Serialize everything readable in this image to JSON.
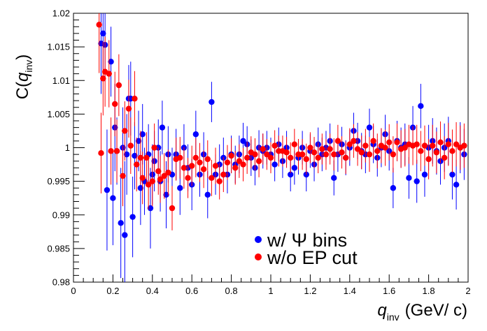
{
  "chart_data": {
    "type": "scatter",
    "xlabel": {
      "symbol": "q",
      "subscript": "inv",
      "units": "(GeV/ c)"
    },
    "ylabel": {
      "prefix": "C(",
      "symbol": "q",
      "subscript": "inv",
      "suffix": ")"
    },
    "xlim": [
      0,
      2
    ],
    "ylim": [
      0.98,
      1.02
    ],
    "x_ticks": [
      0,
      0.2,
      0.4,
      0.6,
      0.8,
      1,
      1.2,
      1.4,
      1.6,
      1.8,
      2
    ],
    "x_tick_labels": [
      "0",
      "0.2",
      "0.4",
      "0.6",
      "0.8",
      "1",
      "1.2",
      "1.4",
      "1.6",
      "1.8",
      "2"
    ],
    "y_ticks": [
      0.98,
      0.985,
      0.99,
      0.995,
      1,
      1.005,
      1.01,
      1.015,
      1.02
    ],
    "y_tick_labels": [
      "0.98",
      "0.985",
      "0.99",
      "0.995",
      "1",
      "1.005",
      "1.01",
      "1.015",
      "1.02"
    ],
    "grid": false,
    "legend": {
      "position": "bottom-center"
    },
    "series": [
      {
        "name": "w/ Ψ bins",
        "color": "#0000ff",
        "x": [
          0.14,
          0.15,
          0.16,
          0.17,
          0.19,
          0.2,
          0.21,
          0.22,
          0.24,
          0.25,
          0.26,
          0.27,
          0.28,
          0.29,
          0.3,
          0.31,
          0.33,
          0.34,
          0.35,
          0.36,
          0.38,
          0.39,
          0.4,
          0.41,
          0.43,
          0.44,
          0.45,
          0.47,
          0.48,
          0.5,
          0.52,
          0.54,
          0.56,
          0.58,
          0.6,
          0.62,
          0.64,
          0.66,
          0.68,
          0.7,
          0.72,
          0.74,
          0.76,
          0.78,
          0.8,
          0.82,
          0.84,
          0.86,
          0.88,
          0.9,
          0.92,
          0.94,
          0.96,
          0.98,
          1.0,
          1.02,
          1.04,
          1.06,
          1.08,
          1.1,
          1.12,
          1.14,
          1.16,
          1.18,
          1.2,
          1.22,
          1.24,
          1.26,
          1.28,
          1.3,
          1.32,
          1.34,
          1.36,
          1.38,
          1.4,
          1.42,
          1.44,
          1.46,
          1.48,
          1.5,
          1.52,
          1.54,
          1.56,
          1.58,
          1.6,
          1.62,
          1.64,
          1.66,
          1.68,
          1.7,
          1.72,
          1.74,
          1.76,
          1.78,
          1.8,
          1.82,
          1.84,
          1.86,
          1.88,
          1.9,
          1.92,
          1.94,
          1.96,
          1.98
        ],
        "y": [
          1.0155,
          1.017,
          1.0153,
          0.9937,
          1.0128,
          0.9925,
          1.003,
          0.9995,
          0.9888,
          1.0,
          0.987,
          0.999,
          1.0073,
          1.0073,
          0.9897,
          0.9988,
          1.001,
          0.994,
          1.002,
          0.995,
          0.999,
          0.991,
          0.996,
          0.998,
          1.0,
          0.995,
          1.003,
          0.993,
          0.999,
          0.996,
          0.999,
          0.994,
          1.0,
          0.997,
          0.9945,
          1.002,
          0.996,
          0.999,
          0.993,
          1.0068,
          0.996,
          0.9975,
          0.9985,
          0.996,
          0.999,
          0.9975,
          0.999,
          1.001,
          1.0005,
          0.9985,
          0.997,
          1.0,
          0.9995,
          1.0,
          0.999,
          0.9975,
          1.0005,
          0.998,
          1.0,
          0.996,
          0.997,
          0.9985,
          1.0,
          0.996,
          0.9995,
          0.9975,
          1.0005,
          0.999,
          1.0,
          1.001,
          0.9955,
          0.999,
          1.0005,
          0.9985,
          1.0,
          1.0025,
          1.001,
          0.9995,
          0.999,
          1.003,
          1.0005,
          0.9985,
          1.0,
          1.002,
          0.9995,
          0.994,
          1.001,
          1.0,
          1.0005,
          0.9955,
          1.003,
          0.995,
          1.0062,
          0.996,
          1.0,
          1.001,
          0.9995,
          0.998,
          1.0,
          1.001,
          0.996,
          0.9945,
          1.0,
          0.999
        ],
        "y_err": [
          0.0075,
          0.006,
          0.0055,
          0.009,
          0.0052,
          0.007,
          0.0065,
          0.005,
          0.0082,
          0.006,
          0.011,
          0.006,
          0.005,
          0.0055,
          0.006,
          0.005,
          0.0045,
          0.0055,
          0.0045,
          0.005,
          0.0045,
          0.006,
          0.0045,
          0.0045,
          0.0042,
          0.0045,
          0.004,
          0.005,
          0.0042,
          0.004,
          0.0038,
          0.004,
          0.0035,
          0.0035,
          0.0038,
          0.0035,
          0.0033,
          0.0033,
          0.0035,
          0.003,
          0.003,
          0.003,
          0.003,
          0.0028,
          0.0028,
          0.0028,
          0.0028,
          0.0027,
          0.0027,
          0.0027,
          0.0026,
          0.0026,
          0.0026,
          0.0025,
          0.0025,
          0.0025,
          0.0025,
          0.0025,
          0.0025,
          0.0025,
          0.0025,
          0.0025,
          0.0025,
          0.0025,
          0.0025,
          0.0025,
          0.0025,
          0.0025,
          0.0025,
          0.0026,
          0.0026,
          0.0026,
          0.0026,
          0.0026,
          0.0027,
          0.0027,
          0.0027,
          0.0027,
          0.0028,
          0.0028,
          0.0028,
          0.0028,
          0.0029,
          0.0029,
          0.0029,
          0.003,
          0.003,
          0.003,
          0.0031,
          0.0031,
          0.0032,
          0.0032,
          0.0033,
          0.0033,
          0.0034,
          0.0034,
          0.0035,
          0.0035,
          0.0036,
          0.0036,
          0.0037,
          0.0037,
          0.0038,
          0.0038
        ]
      },
      {
        "name": "w/o EP cut",
        "color": "#ff0000",
        "x": [
          0.13,
          0.14,
          0.15,
          0.16,
          0.18,
          0.19,
          0.21,
          0.22,
          0.23,
          0.25,
          0.26,
          0.28,
          0.29,
          0.31,
          0.32,
          0.34,
          0.35,
          0.37,
          0.38,
          0.4,
          0.41,
          0.43,
          0.44,
          0.46,
          0.48,
          0.5,
          0.52,
          0.54,
          0.56,
          0.58,
          0.6,
          0.62,
          0.64,
          0.66,
          0.68,
          0.7,
          0.72,
          0.74,
          0.76,
          0.78,
          0.8,
          0.82,
          0.84,
          0.86,
          0.88,
          0.9,
          0.92,
          0.94,
          0.96,
          0.98,
          1.0,
          1.02,
          1.04,
          1.06,
          1.08,
          1.1,
          1.12,
          1.14,
          1.16,
          1.18,
          1.2,
          1.22,
          1.24,
          1.26,
          1.28,
          1.3,
          1.32,
          1.34,
          1.36,
          1.38,
          1.4,
          1.42,
          1.44,
          1.46,
          1.48,
          1.5,
          1.52,
          1.54,
          1.56,
          1.58,
          1.6,
          1.62,
          1.64,
          1.66,
          1.68,
          1.7,
          1.72,
          1.74,
          1.76,
          1.78,
          1.8,
          1.82,
          1.84,
          1.86,
          1.88,
          1.9,
          1.92,
          1.94,
          1.96,
          1.98
        ],
        "y": [
          1.0183,
          0.9992,
          1.0103,
          1.0113,
          1.011,
          0.9995,
          1.0065,
          0.9995,
          1.0093,
          0.9958,
          1.0025,
          1.0058,
          1.0003,
          1.0073,
          0.9975,
          0.9985,
          0.9955,
          0.9985,
          0.9945,
          0.995,
          1.0,
          0.9965,
          0.9953,
          0.9958,
          0.9963,
          0.991,
          0.9983,
          0.9985,
          0.997,
          0.9955,
          0.9973,
          0.9985,
          0.9978,
          0.9968,
          0.9983,
          0.9955,
          0.9973,
          0.995,
          0.996,
          0.9978,
          0.9988,
          0.997,
          0.998,
          0.9975,
          0.9985,
          0.9993,
          0.999,
          0.998,
          0.9998,
          0.999,
          0.9985,
          1.0003,
          0.9995,
          0.9995,
          0.9993,
          0.9985,
          1.0005,
          0.999,
          0.999,
          0.9983,
          1.0,
          0.9993,
          0.9985,
          0.9998,
          0.999,
          0.9998,
          0.999,
          1.001,
          0.9993,
          0.9985,
          1.0005,
          1.001,
          0.9998,
          0.9993,
          1.0003,
          0.999,
          1.001,
          0.9995,
          1.0003,
          1.0,
          1.0008,
          0.999,
          1.0008,
          0.9998,
          1.0,
          1.0005,
          1.0003,
          1.0005,
          0.9995,
          1.0003,
          0.9983,
          1.0003,
          0.9993,
          1.0008,
          0.9985,
          1.0005,
          0.9995,
          1.0005,
          1.0,
          1.0003
        ],
        "y_err": [
          0.0072,
          0.006,
          0.0055,
          0.0052,
          0.005,
          0.005,
          0.0048,
          0.0047,
          0.0046,
          0.0045,
          0.0044,
          0.0043,
          0.0042,
          0.0041,
          0.004,
          0.004,
          0.0039,
          0.0038,
          0.0037,
          0.0037,
          0.0036,
          0.0035,
          0.0035,
          0.0034,
          0.0034,
          0.0033,
          0.0032,
          0.0031,
          0.0031,
          0.003,
          0.003,
          0.0029,
          0.0029,
          0.0028,
          0.0028,
          0.0027,
          0.0027,
          0.0027,
          0.0026,
          0.0026,
          0.0026,
          0.0025,
          0.0025,
          0.0025,
          0.0024,
          0.0024,
          0.0024,
          0.0024,
          0.0023,
          0.0023,
          0.0023,
          0.0023,
          0.0023,
          0.0023,
          0.0023,
          0.0023,
          0.0023,
          0.0023,
          0.0023,
          0.0023,
          0.0023,
          0.0023,
          0.0023,
          0.0023,
          0.0023,
          0.0023,
          0.0024,
          0.0024,
          0.0024,
          0.0024,
          0.0024,
          0.0025,
          0.0025,
          0.0025,
          0.0025,
          0.0026,
          0.0026,
          0.0026,
          0.0026,
          0.0027,
          0.0027,
          0.0027,
          0.0028,
          0.0028,
          0.0028,
          0.0029,
          0.0029,
          0.0029,
          0.003,
          0.003,
          0.003,
          0.0031,
          0.0031,
          0.0031,
          0.0032,
          0.0032,
          0.0032,
          0.0033,
          0.0033,
          0.0033
        ]
      }
    ]
  }
}
